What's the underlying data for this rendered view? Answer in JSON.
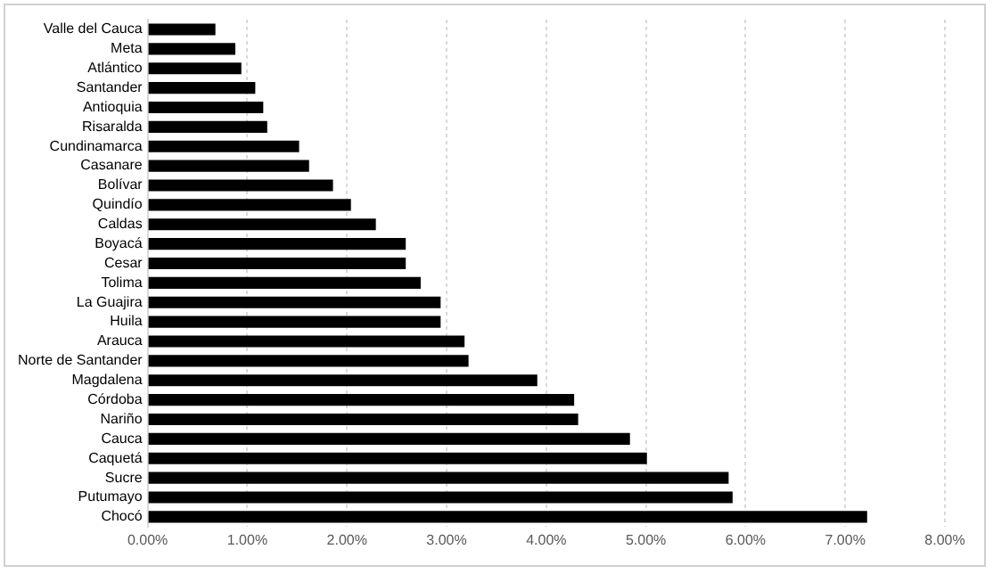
{
  "chart_data": {
    "type": "bar",
    "orientation": "horizontal",
    "categories": [
      "Valle del Cauca",
      "Meta",
      "Atlántico",
      "Santander",
      "Antioquia",
      "Risaralda",
      "Cundinamarca",
      "Casanare",
      "Bolívar",
      "Quindío",
      "Caldas",
      "Boyacá",
      "Cesar",
      "Tolima",
      "La Guajira",
      "Huila",
      "Arauca",
      "Norte de Santander",
      "Magdalena",
      "Córdoba",
      "Nariño",
      "Cauca",
      "Caquetá",
      "Sucre",
      "Putumayo",
      "Chocó"
    ],
    "values": [
      0.68,
      0.88,
      0.94,
      1.08,
      1.16,
      1.2,
      1.52,
      1.62,
      1.86,
      2.04,
      2.29,
      2.59,
      2.59,
      2.74,
      2.94,
      2.94,
      3.18,
      3.22,
      3.91,
      4.28,
      4.32,
      4.84,
      5.01,
      5.83,
      5.87,
      7.22
    ],
    "color": "#000000",
    "xlim": [
      0,
      8
    ],
    "xticks": [
      {
        "value": 0,
        "label": "0.00%"
      },
      {
        "value": 1,
        "label": "1.00%"
      },
      {
        "value": 2,
        "label": "2.00%"
      },
      {
        "value": 3,
        "label": "3.00%"
      },
      {
        "value": 4,
        "label": "4.00%"
      },
      {
        "value": 5,
        "label": "5.00%"
      },
      {
        "value": 6,
        "label": "6.00%"
      },
      {
        "value": 7,
        "label": "7.00%"
      },
      {
        "value": 8,
        "label": "8.00%"
      }
    ],
    "grid": "x"
  }
}
